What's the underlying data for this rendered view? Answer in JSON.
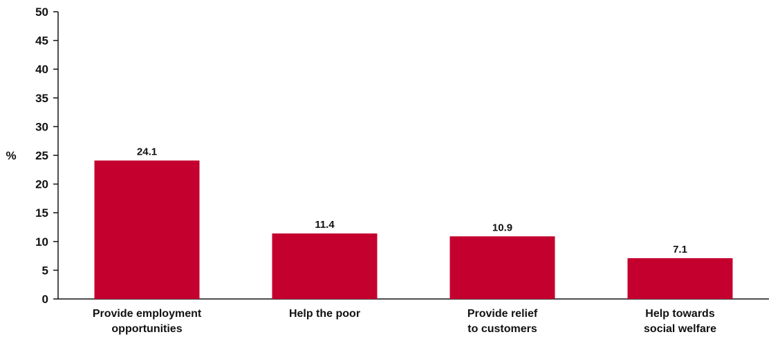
{
  "chart_data": {
    "type": "bar",
    "ylabel": "%",
    "ylim": [
      0,
      50
    ],
    "yticks": [
      "0",
      "5",
      "10",
      "15",
      "20",
      "25",
      "30",
      "35",
      "40",
      "45",
      "50"
    ],
    "categories": [
      [
        "Provide employment",
        "opportunities"
      ],
      [
        "Help the poor"
      ],
      [
        "Provide relief",
        "to customers"
      ],
      [
        "Help towards",
        "social welfare"
      ]
    ],
    "values": [
      24.1,
      11.4,
      10.9,
      7.1
    ],
    "value_labels": [
      "24.1",
      "11.4",
      "10.9",
      "7.1"
    ],
    "bar_color": "#c4002f",
    "grid": false,
    "legend": "none"
  }
}
